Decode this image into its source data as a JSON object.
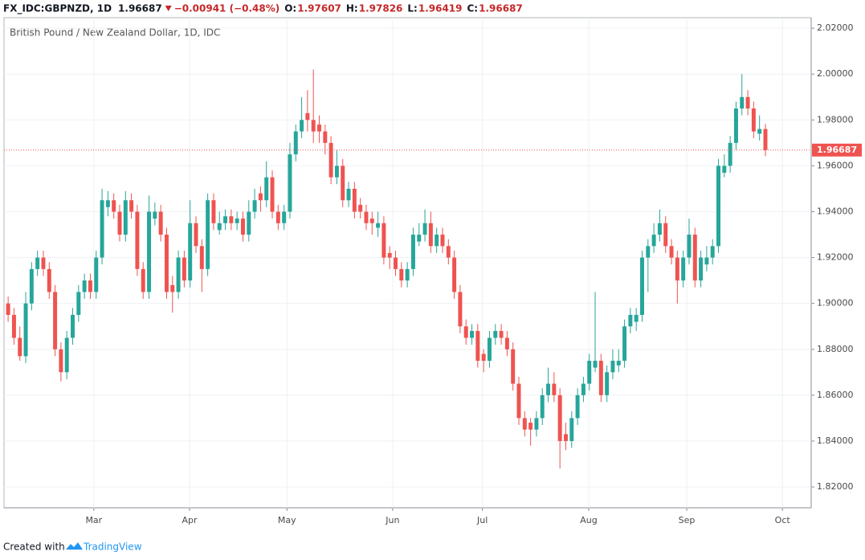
{
  "header": {
    "symbol": "FX_IDC:GBPNZD, 1D",
    "last": "1.96687",
    "change": "−0.00941 (−0.48%)",
    "ohlc": [
      {
        "label": "O:",
        "value": "1.97607"
      },
      {
        "label": "H:",
        "value": "1.97826"
      },
      {
        "label": "L:",
        "value": "1.96419"
      },
      {
        "label": "C:",
        "value": "1.96687"
      }
    ]
  },
  "footer": {
    "text": "Created with",
    "brand": "TradingView"
  },
  "chart_data": {
    "type": "candlestick",
    "subtitle": "British Pound / New Zealand Dollar, 1D, IDC",
    "up_color": "#26a69a",
    "down_color": "#ef5350",
    "grid": true,
    "last_price": 1.96687,
    "ylim": [
      1.8109,
      2.0246
    ],
    "yticks": [
      {
        "value": 1.82,
        "label": "1.82000"
      },
      {
        "value": 1.84,
        "label": "1.84000"
      },
      {
        "value": 1.86,
        "label": "1.86000"
      },
      {
        "value": 1.88,
        "label": "1.88000"
      },
      {
        "value": 1.9,
        "label": "1.90000"
      },
      {
        "value": 1.92,
        "label": "1.92000"
      },
      {
        "value": 1.94,
        "label": "1.94000"
      },
      {
        "value": 1.96,
        "label": "1.96000"
      },
      {
        "value": 1.98,
        "label": "1.98000"
      },
      {
        "value": 2.0,
        "label": "2.00000"
      },
      {
        "value": 2.02,
        "label": "2.02000"
      }
    ],
    "xlim": [
      -0.7,
      136.8
    ],
    "xticks": [
      {
        "value": 14.6,
        "label": "Mar"
      },
      {
        "value": 30.9,
        "label": "Apr"
      },
      {
        "value": 47.5,
        "label": "May"
      },
      {
        "value": 65.5,
        "label": "Jun"
      },
      {
        "value": 80.8,
        "label": "Jul"
      },
      {
        "value": 98.9,
        "label": "Aug"
      },
      {
        "value": 115.6,
        "label": "Sep"
      },
      {
        "value": 131.9,
        "label": "Oct"
      }
    ],
    "candles": [
      [
        1.9,
        1.903,
        1.892,
        1.895
      ],
      [
        1.895,
        1.898,
        1.882,
        1.885
      ],
      [
        1.885,
        1.89,
        1.875,
        1.877
      ],
      [
        1.877,
        1.905,
        1.874,
        1.9
      ],
      [
        1.9,
        1.918,
        1.897,
        1.915
      ],
      [
        1.915,
        1.923,
        1.912,
        1.92
      ],
      [
        1.92,
        1.923,
        1.912,
        1.915
      ],
      [
        1.915,
        1.918,
        1.902,
        1.905
      ],
      [
        1.905,
        1.908,
        1.877,
        1.88
      ],
      [
        1.88,
        1.883,
        1.866,
        1.87
      ],
      [
        1.87,
        1.888,
        1.867,
        1.885
      ],
      [
        1.885,
        1.898,
        1.882,
        1.895
      ],
      [
        1.895,
        1.908,
        1.892,
        1.905
      ],
      [
        1.905,
        1.913,
        1.902,
        1.91
      ],
      [
        1.91,
        1.913,
        1.902,
        1.905
      ],
      [
        1.905,
        1.923,
        1.902,
        1.92
      ],
      [
        1.92,
        1.95,
        1.917,
        1.945
      ],
      [
        1.942,
        1.949,
        1.938,
        1.945
      ],
      [
        1.945,
        1.948,
        1.937,
        1.94
      ],
      [
        1.94,
        1.943,
        1.927,
        1.93
      ],
      [
        1.93,
        1.949,
        1.927,
        1.945
      ],
      [
        1.945,
        1.948,
        1.937,
        1.94
      ],
      [
        1.94,
        1.943,
        1.912,
        1.915
      ],
      [
        1.915,
        1.918,
        1.902,
        1.905
      ],
      [
        1.905,
        1.947,
        1.902,
        1.94
      ],
      [
        1.937,
        1.944,
        1.934,
        1.94
      ],
      [
        1.94,
        1.943,
        1.927,
        1.93
      ],
      [
        1.93,
        1.933,
        1.902,
        1.905
      ],
      [
        1.908,
        1.912,
        1.896,
        1.905
      ],
      [
        1.905,
        1.923,
        1.902,
        1.92
      ],
      [
        1.92,
        1.923,
        1.907,
        1.91
      ],
      [
        1.91,
        1.945,
        1.907,
        1.935
      ],
      [
        1.935,
        1.938,
        1.922,
        1.925
      ],
      [
        1.925,
        1.928,
        1.905,
        1.915
      ],
      [
        1.915,
        1.948,
        1.912,
        1.945
      ],
      [
        1.945,
        1.948,
        1.932,
        1.935
      ],
      [
        1.932,
        1.94,
        1.93,
        1.935
      ],
      [
        1.935,
        1.941,
        1.932,
        1.938
      ],
      [
        1.938,
        1.941,
        1.932,
        1.935
      ],
      [
        1.935,
        1.94,
        1.932,
        1.937
      ],
      [
        1.937,
        1.94,
        1.927,
        1.93
      ],
      [
        1.93,
        1.945,
        1.927,
        1.94
      ],
      [
        1.94,
        1.95,
        1.937,
        1.945
      ],
      [
        1.948,
        1.951,
        1.94,
        1.945
      ],
      [
        1.945,
        1.962,
        1.942,
        1.955
      ],
      [
        1.955,
        1.958,
        1.937,
        1.94
      ],
      [
        1.94,
        1.943,
        1.932,
        1.935
      ],
      [
        1.935,
        1.943,
        1.932,
        1.94
      ],
      [
        1.94,
        1.97,
        1.937,
        1.965
      ],
      [
        1.965,
        1.978,
        1.962,
        1.975
      ],
      [
        1.975,
        1.99,
        1.972,
        1.98
      ],
      [
        1.983,
        1.993,
        1.975,
        1.98
      ],
      [
        1.98,
        2.002,
        1.97,
        1.975
      ],
      [
        1.978,
        1.982,
        1.97,
        1.975
      ],
      [
        1.975,
        1.978,
        1.965,
        1.97
      ],
      [
        1.97,
        1.973,
        1.952,
        1.955
      ],
      [
        1.955,
        1.967,
        1.952,
        1.96
      ],
      [
        1.96,
        1.963,
        1.942,
        1.945
      ],
      [
        1.945,
        1.953,
        1.942,
        1.95
      ],
      [
        1.95,
        1.953,
        1.937,
        1.94
      ],
      [
        1.943,
        1.946,
        1.937,
        1.94
      ],
      [
        1.94,
        1.943,
        1.932,
        1.935
      ],
      [
        1.937,
        1.94,
        1.93,
        1.935
      ],
      [
        1.933,
        1.94,
        1.929,
        1.935
      ],
      [
        1.935,
        1.938,
        1.917,
        1.92
      ],
      [
        1.922,
        1.925,
        1.915,
        1.92
      ],
      [
        1.92,
        1.923,
        1.912,
        1.915
      ],
      [
        1.915,
        1.918,
        1.907,
        1.91
      ],
      [
        1.91,
        1.918,
        1.907,
        1.915
      ],
      [
        1.915,
        1.933,
        1.912,
        1.93
      ],
      [
        1.927,
        1.935,
        1.925,
        1.93
      ],
      [
        1.93,
        1.941,
        1.927,
        1.935
      ],
      [
        1.935,
        1.94,
        1.922,
        1.925
      ],
      [
        1.925,
        1.933,
        1.922,
        1.93
      ],
      [
        1.93,
        1.933,
        1.922,
        1.925
      ],
      [
        1.925,
        1.928,
        1.917,
        1.92
      ],
      [
        1.92,
        1.923,
        1.902,
        1.905
      ],
      [
        1.905,
        1.908,
        1.887,
        1.89
      ],
      [
        1.89,
        1.893,
        1.882,
        1.885
      ],
      [
        1.885,
        1.891,
        1.882,
        1.888
      ],
      [
        1.888,
        1.891,
        1.872,
        1.875
      ],
      [
        1.878,
        1.88,
        1.87,
        1.875
      ],
      [
        1.875,
        1.888,
        1.872,
        1.885
      ],
      [
        1.885,
        1.891,
        1.882,
        1.888
      ],
      [
        1.888,
        1.891,
        1.882,
        1.885
      ],
      [
        1.885,
        1.888,
        1.877,
        1.88
      ],
      [
        1.88,
        1.883,
        1.862,
        1.865
      ],
      [
        1.865,
        1.868,
        1.847,
        1.85
      ],
      [
        1.85,
        1.853,
        1.842,
        1.845
      ],
      [
        1.848,
        1.85,
        1.838,
        1.845
      ],
      [
        1.845,
        1.853,
        1.842,
        1.85
      ],
      [
        1.85,
        1.863,
        1.847,
        1.86
      ],
      [
        1.86,
        1.872,
        1.857,
        1.865
      ],
      [
        1.865,
        1.87,
        1.857,
        1.86
      ],
      [
        1.86,
        1.863,
        1.828,
        1.84
      ],
      [
        1.843,
        1.848,
        1.836,
        1.84
      ],
      [
        1.84,
        1.853,
        1.837,
        1.85
      ],
      [
        1.85,
        1.863,
        1.847,
        1.86
      ],
      [
        1.86,
        1.868,
        1.857,
        1.865
      ],
      [
        1.865,
        1.878,
        1.862,
        1.875
      ],
      [
        1.872,
        1.905,
        1.87,
        1.875
      ],
      [
        1.875,
        1.878,
        1.857,
        1.86
      ],
      [
        1.86,
        1.873,
        1.857,
        1.87
      ],
      [
        1.87,
        1.88,
        1.867,
        1.875
      ],
      [
        1.873,
        1.88,
        1.87,
        1.875
      ],
      [
        1.875,
        1.893,
        1.872,
        1.89
      ],
      [
        1.89,
        1.898,
        1.887,
        1.895
      ],
      [
        1.892,
        1.898,
        1.888,
        1.895
      ],
      [
        1.895,
        1.923,
        1.892,
        1.92
      ],
      [
        1.92,
        1.928,
        1.905,
        1.925
      ],
      [
        1.925,
        1.935,
        1.922,
        1.93
      ],
      [
        1.93,
        1.941,
        1.927,
        1.935
      ],
      [
        1.935,
        1.938,
        1.922,
        1.925
      ],
      [
        1.925,
        1.928,
        1.917,
        1.92
      ],
      [
        1.92,
        1.923,
        1.9,
        1.91
      ],
      [
        1.91,
        1.923,
        1.907,
        1.92
      ],
      [
        1.92,
        1.937,
        1.917,
        1.93
      ],
      [
        1.93,
        1.933,
        1.907,
        1.91
      ],
      [
        1.91,
        1.923,
        1.907,
        1.92
      ],
      [
        1.917,
        1.925,
        1.914,
        1.92
      ],
      [
        1.92,
        1.928,
        1.917,
        1.925
      ],
      [
        1.925,
        1.963,
        1.922,
        1.96
      ],
      [
        1.957,
        1.965,
        1.955,
        1.96
      ],
      [
        1.96,
        1.973,
        1.957,
        1.97
      ],
      [
        1.97,
        1.988,
        1.967,
        1.985
      ],
      [
        1.985,
        2.0,
        1.982,
        1.99
      ],
      [
        1.99,
        1.993,
        1.982,
        1.985
      ],
      [
        1.985,
        1.988,
        1.972,
        1.975
      ],
      [
        1.974,
        1.982,
        1.971,
        1.97607
      ],
      [
        1.97607,
        1.97826,
        1.96419,
        1.96687
      ]
    ]
  }
}
